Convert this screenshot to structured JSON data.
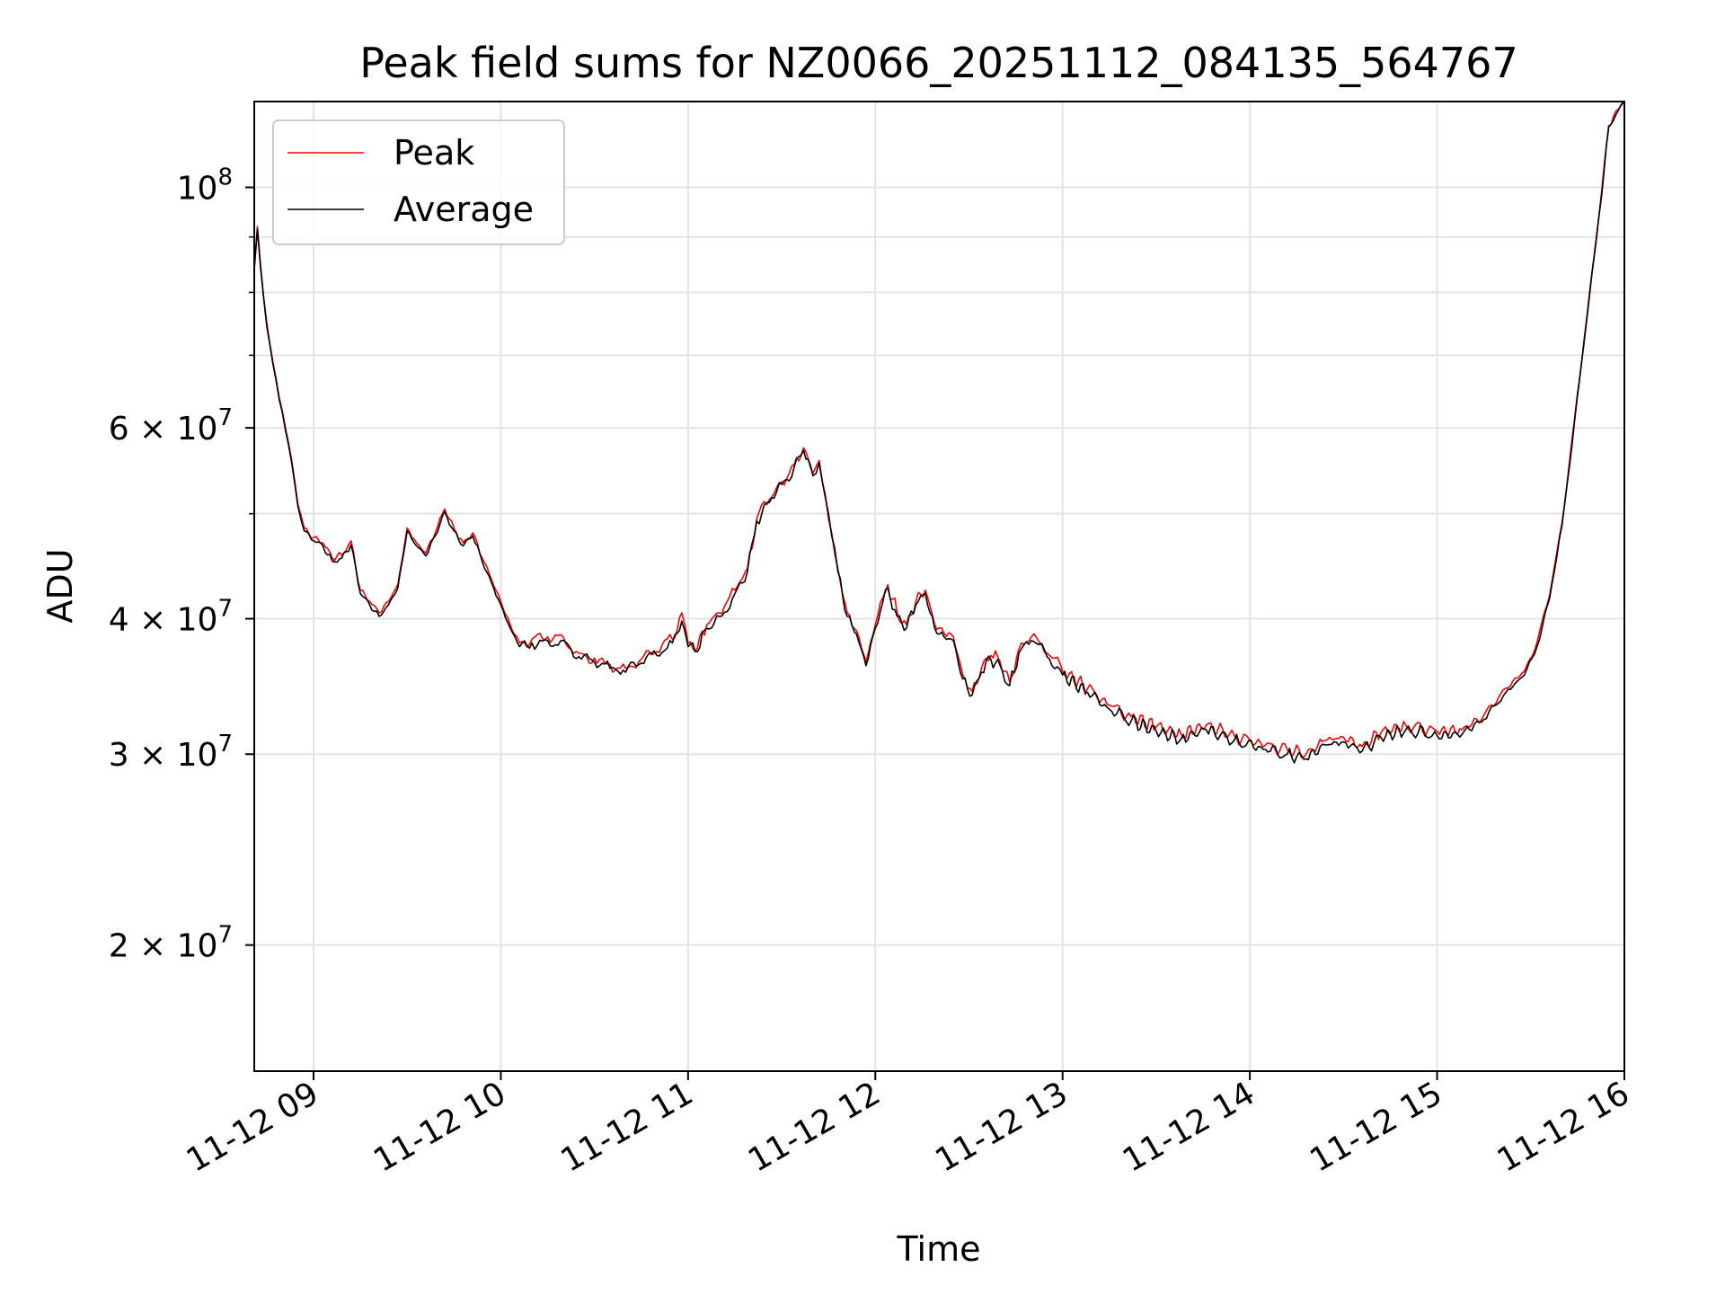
{
  "chart_data": {
    "type": "line",
    "title": "Peak field sums for NZ0066_20251112_084135_564767",
    "xlabel": "Time",
    "ylabel": "ADU",
    "yscale": "log",
    "xlim": [
      "2025-11-12 08:41",
      "2025-11-12 16:00"
    ],
    "ylim": [
      15300000,
      120000000
    ],
    "grid": true,
    "legend_position": "upper left",
    "x_ticks": [
      {
        "value": "2025-11-12 09:00",
        "label": "11-12 09"
      },
      {
        "value": "2025-11-12 10:00",
        "label": "11-12 10"
      },
      {
        "value": "2025-11-12 11:00",
        "label": "11-12 11"
      },
      {
        "value": "2025-11-12 12:00",
        "label": "11-12 12"
      },
      {
        "value": "2025-11-12 13:00",
        "label": "11-12 13"
      },
      {
        "value": "2025-11-12 14:00",
        "label": "11-12 14"
      },
      {
        "value": "2025-11-12 15:00",
        "label": "11-12 15"
      },
      {
        "value": "2025-11-12 16:00",
        "label": "11-12 16"
      }
    ],
    "y_ticks": [
      {
        "value": 100000000,
        "base": "10",
        "exp": "8"
      },
      {
        "value": 60000000,
        "base": "6 × 10",
        "exp": "7"
      },
      {
        "value": 40000000,
        "base": "4 × 10",
        "exp": "7"
      },
      {
        "value": 30000000,
        "base": "3 × 10",
        "exp": "7"
      },
      {
        "value": 20000000,
        "base": "2 × 10",
        "exp": "7"
      }
    ],
    "y_minor_ticks": [
      50000000,
      70000000,
      80000000,
      90000000
    ],
    "series": [
      {
        "name": "Peak",
        "color": "#ff0000",
        "points": [
          [
            "2025-11-12 08:41",
            84000000
          ],
          [
            "2025-11-12 08:42",
            92000000
          ],
          [
            "2025-11-12 08:43",
            85000000
          ],
          [
            "2025-11-12 08:45",
            75000000
          ],
          [
            "2025-11-12 08:47",
            69000000
          ],
          [
            "2025-11-12 08:49",
            64000000
          ],
          [
            "2025-11-12 08:51",
            60000000
          ],
          [
            "2025-11-12 08:53",
            56000000
          ],
          [
            "2025-11-12 08:55",
            51000000
          ],
          [
            "2025-11-12 08:57",
            48500000
          ],
          [
            "2025-11-12 09:00",
            47500000
          ],
          [
            "2025-11-12 09:03",
            47000000
          ],
          [
            "2025-11-12 09:06",
            45500000
          ],
          [
            "2025-11-12 09:09",
            45800000
          ],
          [
            "2025-11-12 09:12",
            47200000
          ],
          [
            "2025-11-12 09:15",
            42500000
          ],
          [
            "2025-11-12 09:18",
            41500000
          ],
          [
            "2025-11-12 09:21",
            40500000
          ],
          [
            "2025-11-12 09:24",
            41500000
          ],
          [
            "2025-11-12 09:27",
            43000000
          ],
          [
            "2025-11-12 09:30",
            48500000
          ],
          [
            "2025-11-12 09:33",
            47000000
          ],
          [
            "2025-11-12 09:36",
            46000000
          ],
          [
            "2025-11-12 09:39",
            48000000
          ],
          [
            "2025-11-12 09:42",
            50500000
          ],
          [
            "2025-11-12 09:45",
            48500000
          ],
          [
            "2025-11-12 09:48",
            47000000
          ],
          [
            "2025-11-12 09:51",
            48000000
          ],
          [
            "2025-11-12 09:54",
            45500000
          ],
          [
            "2025-11-12 09:57",
            43500000
          ],
          [
            "2025-11-12 10:00",
            41500000
          ],
          [
            "2025-11-12 10:03",
            39500000
          ],
          [
            "2025-11-12 10:06",
            38000000
          ],
          [
            "2025-11-12 10:10",
            38300000
          ],
          [
            "2025-11-12 10:15",
            38500000
          ],
          [
            "2025-11-12 10:20",
            38500000
          ],
          [
            "2025-11-12 10:25",
            37200000
          ],
          [
            "2025-11-12 10:30",
            36800000
          ],
          [
            "2025-11-12 10:35",
            36300000
          ],
          [
            "2025-11-12 10:40",
            36000000
          ],
          [
            "2025-11-12 10:45",
            36700000
          ],
          [
            "2025-11-12 10:50",
            37300000
          ],
          [
            "2025-11-12 10:55",
            38300000
          ],
          [
            "2025-11-12 10:58",
            40500000
          ],
          [
            "2025-11-12 11:00",
            38000000
          ],
          [
            "2025-11-12 11:03",
            37600000
          ],
          [
            "2025-11-12 11:06",
            39500000
          ],
          [
            "2025-11-12 11:10",
            40500000
          ],
          [
            "2025-11-12 11:15",
            42500000
          ],
          [
            "2025-11-12 11:19",
            44500000
          ],
          [
            "2025-11-12 11:22",
            49500000
          ],
          [
            "2025-11-12 11:26",
            51500000
          ],
          [
            "2025-11-12 11:30",
            53500000
          ],
          [
            "2025-11-12 11:34",
            55500000
          ],
          [
            "2025-11-12 11:37",
            57500000
          ],
          [
            "2025-11-12 11:40",
            54500000
          ],
          [
            "2025-11-12 11:42",
            56000000
          ],
          [
            "2025-11-12 11:44",
            52000000
          ],
          [
            "2025-11-12 11:46",
            48000000
          ],
          [
            "2025-11-12 11:48",
            44500000
          ],
          [
            "2025-11-12 11:51",
            40500000
          ],
          [
            "2025-11-12 11:54",
            39000000
          ],
          [
            "2025-11-12 11:57",
            36500000
          ],
          [
            "2025-11-12 12:00",
            39500000
          ],
          [
            "2025-11-12 12:04",
            43000000
          ],
          [
            "2025-11-12 12:07",
            40500000
          ],
          [
            "2025-11-12 12:10",
            39500000
          ],
          [
            "2025-11-12 12:13",
            41500000
          ],
          [
            "2025-11-12 12:16",
            42500000
          ],
          [
            "2025-11-12 12:19",
            39500000
          ],
          [
            "2025-11-12 12:22",
            38800000
          ],
          [
            "2025-11-12 12:25",
            38500000
          ],
          [
            "2025-11-12 12:28",
            35500000
          ],
          [
            "2025-11-12 12:31",
            34300000
          ],
          [
            "2025-11-12 12:34",
            36000000
          ],
          [
            "2025-11-12 12:37",
            37000000
          ],
          [
            "2025-11-12 12:40",
            36500000
          ],
          [
            "2025-11-12 12:43",
            35000000
          ],
          [
            "2025-11-12 12:46",
            37500000
          ],
          [
            "2025-11-12 12:50",
            38500000
          ],
          [
            "2025-11-12 12:55",
            37200000
          ],
          [
            "2025-11-12 13:00",
            35800000
          ],
          [
            "2025-11-12 13:08",
            34500000
          ],
          [
            "2025-11-12 13:15",
            33300000
          ],
          [
            "2025-11-12 13:22",
            32500000
          ],
          [
            "2025-11-12 13:30",
            31800000
          ],
          [
            "2025-11-12 13:38",
            31300000
          ],
          [
            "2025-11-12 13:46",
            31900000
          ],
          [
            "2025-11-12 13:55",
            31200000
          ],
          [
            "2025-11-12 14:05",
            30600000
          ],
          [
            "2025-11-12 14:12",
            30300000
          ],
          [
            "2025-11-12 14:18",
            30000000
          ],
          [
            "2025-11-12 14:24",
            30900000
          ],
          [
            "2025-11-12 14:30",
            31100000
          ],
          [
            "2025-11-12 14:36",
            30500000
          ],
          [
            "2025-11-12 14:42",
            31400000
          ],
          [
            "2025-11-12 14:50",
            31900000
          ],
          [
            "2025-11-12 15:00",
            31500000
          ],
          [
            "2025-11-12 15:08",
            31600000
          ],
          [
            "2025-11-12 15:15",
            32600000
          ],
          [
            "2025-11-12 15:22",
            34500000
          ],
          [
            "2025-11-12 15:28",
            35800000
          ],
          [
            "2025-11-12 15:32",
            38000000
          ],
          [
            "2025-11-12 15:36",
            42000000
          ],
          [
            "2025-11-12 15:40",
            49000000
          ],
          [
            "2025-11-12 15:44",
            61000000
          ],
          [
            "2025-11-12 15:48",
            76000000
          ],
          [
            "2025-11-12 15:52",
            95000000
          ],
          [
            "2025-11-12 15:55",
            114000000
          ],
          [
            "2025-11-12 15:58",
            118000000
          ],
          [
            "2025-11-12 16:00",
            120000000
          ]
        ]
      },
      {
        "name": "Average",
        "color": "#000000",
        "points": [
          [
            "2025-11-12 08:41",
            84000000
          ],
          [
            "2025-11-12 08:42",
            91500000
          ],
          [
            "2025-11-12 08:43",
            84500000
          ],
          [
            "2025-11-12 08:45",
            74500000
          ],
          [
            "2025-11-12 08:47",
            68700000
          ],
          [
            "2025-11-12 08:49",
            63700000
          ],
          [
            "2025-11-12 08:51",
            59700000
          ],
          [
            "2025-11-12 08:53",
            55700000
          ],
          [
            "2025-11-12 08:55",
            50800000
          ],
          [
            "2025-11-12 08:57",
            48200000
          ],
          [
            "2025-11-12 09:00",
            47200000
          ],
          [
            "2025-11-12 09:03",
            46700000
          ],
          [
            "2025-11-12 09:06",
            45200000
          ],
          [
            "2025-11-12 09:09",
            45500000
          ],
          [
            "2025-11-12 09:12",
            46800000
          ],
          [
            "2025-11-12 09:15",
            42200000
          ],
          [
            "2025-11-12 09:18",
            41200000
          ],
          [
            "2025-11-12 09:21",
            40200000
          ],
          [
            "2025-11-12 09:24",
            41200000
          ],
          [
            "2025-11-12 09:27",
            42700000
          ],
          [
            "2025-11-12 09:30",
            48200000
          ],
          [
            "2025-11-12 09:33",
            46700000
          ],
          [
            "2025-11-12 09:36",
            45700000
          ],
          [
            "2025-11-12 09:39",
            47700000
          ],
          [
            "2025-11-12 09:42",
            50200000
          ],
          [
            "2025-11-12 09:45",
            48200000
          ],
          [
            "2025-11-12 09:48",
            46700000
          ],
          [
            "2025-11-12 09:51",
            47700000
          ],
          [
            "2025-11-12 09:54",
            45200000
          ],
          [
            "2025-11-12 09:57",
            43200000
          ],
          [
            "2025-11-12 10:00",
            41200000
          ],
          [
            "2025-11-12 10:03",
            39200000
          ],
          [
            "2025-11-12 10:06",
            37700000
          ],
          [
            "2025-11-12 10:10",
            38000000
          ],
          [
            "2025-11-12 10:15",
            38200000
          ],
          [
            "2025-11-12 10:20",
            38200000
          ],
          [
            "2025-11-12 10:25",
            36900000
          ],
          [
            "2025-11-12 10:30",
            36500000
          ],
          [
            "2025-11-12 10:35",
            36000000
          ],
          [
            "2025-11-12 10:40",
            35700000
          ],
          [
            "2025-11-12 10:45",
            36400000
          ],
          [
            "2025-11-12 10:50",
            37000000
          ],
          [
            "2025-11-12 10:55",
            38000000
          ],
          [
            "2025-11-12 10:58",
            39800000
          ],
          [
            "2025-11-12 11:00",
            37700000
          ],
          [
            "2025-11-12 11:03",
            37300000
          ],
          [
            "2025-11-12 11:06",
            39200000
          ],
          [
            "2025-11-12 11:10",
            40200000
          ],
          [
            "2025-11-12 11:15",
            42200000
          ],
          [
            "2025-11-12 11:19",
            44200000
          ],
          [
            "2025-11-12 11:22",
            49200000
          ],
          [
            "2025-11-12 11:26",
            51200000
          ],
          [
            "2025-11-12 11:30",
            53200000
          ],
          [
            "2025-11-12 11:34",
            55200000
          ],
          [
            "2025-11-12 11:37",
            57200000
          ],
          [
            "2025-11-12 11:40",
            54200000
          ],
          [
            "2025-11-12 11:42",
            55700000
          ],
          [
            "2025-11-12 11:44",
            51700000
          ],
          [
            "2025-11-12 11:46",
            47700000
          ],
          [
            "2025-11-12 11:48",
            44200000
          ],
          [
            "2025-11-12 11:51",
            40200000
          ],
          [
            "2025-11-12 11:54",
            38700000
          ],
          [
            "2025-11-12 11:57",
            36200000
          ],
          [
            "2025-11-12 12:00",
            39200000
          ],
          [
            "2025-11-12 12:04",
            42700000
          ],
          [
            "2025-11-12 12:07",
            40200000
          ],
          [
            "2025-11-12 12:10",
            39200000
          ],
          [
            "2025-11-12 12:13",
            41200000
          ],
          [
            "2025-11-12 12:16",
            42200000
          ],
          [
            "2025-11-12 12:19",
            39200000
          ],
          [
            "2025-11-12 12:22",
            38500000
          ],
          [
            "2025-11-12 12:25",
            38200000
          ],
          [
            "2025-11-12 12:28",
            35200000
          ],
          [
            "2025-11-12 12:31",
            34000000
          ],
          [
            "2025-11-12 12:34",
            35700000
          ],
          [
            "2025-11-12 12:37",
            36700000
          ],
          [
            "2025-11-12 12:40",
            36200000
          ],
          [
            "2025-11-12 12:43",
            34700000
          ],
          [
            "2025-11-12 12:46",
            37200000
          ],
          [
            "2025-11-12 12:50",
            38200000
          ],
          [
            "2025-11-12 12:55",
            36900000
          ],
          [
            "2025-11-12 13:00",
            35500000
          ],
          [
            "2025-11-12 13:08",
            34200000
          ],
          [
            "2025-11-12 13:15",
            33000000
          ],
          [
            "2025-11-12 13:22",
            32200000
          ],
          [
            "2025-11-12 13:30",
            31500000
          ],
          [
            "2025-11-12 13:38",
            31000000
          ],
          [
            "2025-11-12 13:46",
            31600000
          ],
          [
            "2025-11-12 13:55",
            30900000
          ],
          [
            "2025-11-12 14:05",
            30300000
          ],
          [
            "2025-11-12 14:12",
            30000000
          ],
          [
            "2025-11-12 14:18",
            29700000
          ],
          [
            "2025-11-12 14:24",
            30600000
          ],
          [
            "2025-11-12 14:30",
            30800000
          ],
          [
            "2025-11-12 14:36",
            30200000
          ],
          [
            "2025-11-12 14:42",
            31100000
          ],
          [
            "2025-11-12 14:50",
            31600000
          ],
          [
            "2025-11-12 15:00",
            31200000
          ],
          [
            "2025-11-12 15:08",
            31300000
          ],
          [
            "2025-11-12 15:15",
            32300000
          ],
          [
            "2025-11-12 15:22",
            34200000
          ],
          [
            "2025-11-12 15:28",
            35500000
          ],
          [
            "2025-11-12 15:32",
            37700000
          ],
          [
            "2025-11-12 15:36",
            41700000
          ],
          [
            "2025-11-12 15:40",
            48700000
          ],
          [
            "2025-11-12 15:44",
            60700000
          ],
          [
            "2025-11-12 15:48",
            75700000
          ],
          [
            "2025-11-12 15:52",
            94700000
          ],
          [
            "2025-11-12 15:55",
            113700000
          ],
          [
            "2025-11-12 15:58",
            117700000
          ],
          [
            "2025-11-12 16:00",
            120000000
          ]
        ]
      }
    ]
  }
}
